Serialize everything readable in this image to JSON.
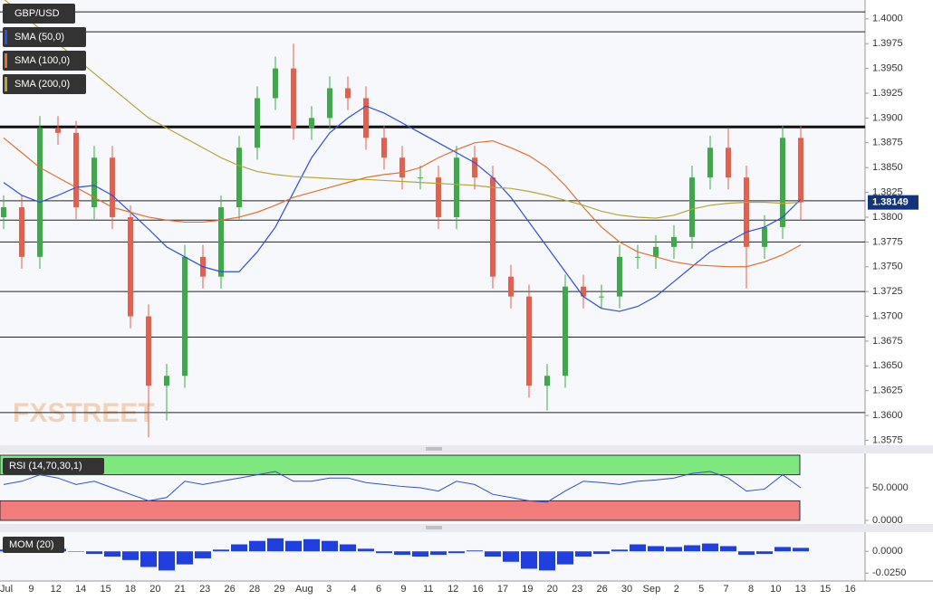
{
  "chart_data": [
    {
      "type": "candlestick",
      "title": "GBP/USD",
      "logo": "FXSTREET",
      "up_color": "#3ea84a",
      "down_color": "#e0614f",
      "open": [
        1.38,
        1.381,
        1.376,
        1.389,
        1.3885,
        1.381,
        1.386,
        1.38,
        1.37,
        1.363,
        1.364,
        1.376,
        1.374,
        1.381,
        1.387,
        1.392,
        1.395,
        1.389,
        1.39,
        1.393,
        1.392,
        1.388,
        1.386,
        1.384,
        1.384,
        1.38,
        1.386,
        1.384,
        1.374,
        1.372,
        1.363,
        1.364,
        1.373,
        1.372,
        1.372,
        1.376,
        1.376,
        1.377,
        1.378,
        1.384,
        1.387,
        1.384,
        1.377,
        1.379,
        1.388
      ],
      "high": [
        1.3822,
        1.3822,
        1.3902,
        1.3902,
        1.3897,
        1.3872,
        1.3872,
        1.3812,
        1.3712,
        1.3652,
        1.3772,
        1.3772,
        1.3822,
        1.3882,
        1.3932,
        1.3962,
        1.3975,
        1.3912,
        1.3942,
        1.3942,
        1.3932,
        1.3892,
        1.3872,
        1.3852,
        1.3852,
        1.3872,
        1.3872,
        1.3852,
        1.3752,
        1.3732,
        1.3652,
        1.3742,
        1.3742,
        1.3732,
        1.3772,
        1.3772,
        1.3782,
        1.3792,
        1.3852,
        1.3882,
        1.389,
        1.3852,
        1.3802,
        1.3892,
        1.3892
      ],
      "low": [
        1.3788,
        1.3748,
        1.3748,
        1.3873,
        1.3798,
        1.3798,
        1.3788,
        1.3688,
        1.3578,
        1.3595,
        1.3628,
        1.3728,
        1.3728,
        1.3798,
        1.3858,
        1.3908,
        1.3878,
        1.3878,
        1.3888,
        1.3908,
        1.3868,
        1.3848,
        1.3828,
        1.3828,
        1.3788,
        1.3788,
        1.3828,
        1.3728,
        1.3708,
        1.3618,
        1.3605,
        1.3628,
        1.3708,
        1.3708,
        1.3708,
        1.3748,
        1.3748,
        1.3758,
        1.3768,
        1.3828,
        1.3828,
        1.3728,
        1.3758,
        1.3778,
        1.3797
      ],
      "close": [
        1.381,
        1.376,
        1.389,
        1.3885,
        1.381,
        1.386,
        1.38,
        1.37,
        1.363,
        1.364,
        1.376,
        1.374,
        1.381,
        1.387,
        1.392,
        1.395,
        1.389,
        1.39,
        1.393,
        1.392,
        1.388,
        1.386,
        1.384,
        1.384,
        1.38,
        1.386,
        1.384,
        1.374,
        1.372,
        1.363,
        1.364,
        1.373,
        1.372,
        1.372,
        1.376,
        1.376,
        1.377,
        1.378,
        1.384,
        1.387,
        1.384,
        1.377,
        1.379,
        1.388,
        1.3815
      ],
      "series": [
        {
          "name": "SMA (50,0)",
          "color": "#2f4fd8",
          "values": [
            1.3835,
            1.3822,
            1.3815,
            1.3822,
            1.383,
            1.3832,
            1.3822,
            1.3805,
            1.3788,
            1.377,
            1.376,
            1.375,
            1.3745,
            1.3745,
            1.3765,
            1.379,
            1.3825,
            1.386,
            1.3885,
            1.39,
            1.3912,
            1.3905,
            1.3895,
            1.3885,
            1.3875,
            1.3865,
            1.3855,
            1.384,
            1.382,
            1.3795,
            1.377,
            1.3745,
            1.372,
            1.3708,
            1.3705,
            1.371,
            1.372,
            1.3735,
            1.375,
            1.3765,
            1.3775,
            1.3785,
            1.379,
            1.38,
            1.3818
          ]
        },
        {
          "name": "SMA (100,0)",
          "color": "#e07034",
          "values": [
            1.388,
            1.3865,
            1.385,
            1.384,
            1.383,
            1.382,
            1.381,
            1.3805,
            1.38,
            1.3797,
            1.3795,
            1.3795,
            1.3797,
            1.38,
            1.3805,
            1.3812,
            1.382,
            1.3825,
            1.383,
            1.3835,
            1.384,
            1.3843,
            1.3845,
            1.385,
            1.386,
            1.3868,
            1.3875,
            1.3877,
            1.387,
            1.3862,
            1.385,
            1.3832,
            1.381,
            1.379,
            1.3775,
            1.3765,
            1.376,
            1.3755,
            1.3752,
            1.3751,
            1.375,
            1.375,
            1.3755,
            1.3762,
            1.3772
          ]
        },
        {
          "name": "SMA (200,0)",
          "color": "#b5a638",
          "values": [
            1.402,
            1.4005,
            1.399,
            1.3975,
            1.396,
            1.3945,
            1.393,
            1.3915,
            1.39,
            1.389,
            1.388,
            1.387,
            1.386,
            1.3852,
            1.3846,
            1.3843,
            1.3841,
            1.384,
            1.3839,
            1.3838,
            1.3838,
            1.3837,
            1.3836,
            1.3835,
            1.3834,
            1.3833,
            1.3832,
            1.383,
            1.3829,
            1.3826,
            1.3822,
            1.3817,
            1.3812,
            1.3806,
            1.3802,
            1.38,
            1.3799,
            1.3802,
            1.3808,
            1.3812,
            1.3814,
            1.3815,
            1.3815,
            1.3814,
            1.3815
          ]
        }
      ],
      "ylim": [
        1.357,
        1.4019
      ],
      "yticks": [
        1.3575,
        {
          "value": 1.36,
          "label": "1.3600"
        },
        1.3625,
        {
          "value": 1.365,
          "label": "1.3650"
        },
        1.3675,
        {
          "value": 1.37,
          "label": "1.3700"
        },
        1.3725,
        {
          "value": 1.375,
          "label": "1.3750"
        },
        1.3775,
        {
          "value": 1.38,
          "label": "1.3800"
        },
        1.3825,
        {
          "value": 1.385,
          "label": "1.3850"
        },
        1.3875,
        {
          "value": 1.39,
          "label": "1.3900"
        },
        1.3925,
        {
          "value": 1.395,
          "label": "1.3950"
        },
        1.3975,
        {
          "value": 1.4,
          "label": "1.4000"
        }
      ],
      "levels": [
        1.4007,
        1.3987,
        1.38165,
        1.3797,
        1.3775,
        1.3725,
        1.3679,
        1.3603
      ],
      "key_level": 1.3891,
      "last_price": 1.38149
    },
    {
      "type": "line",
      "title": "RSI (14,70,30,1)",
      "color": "#3050c8",
      "values": [
        55,
        60,
        70,
        65,
        55,
        60,
        50,
        40,
        30,
        35,
        60,
        55,
        60,
        65,
        70,
        75,
        60,
        60,
        65,
        65,
        58,
        55,
        52,
        50,
        45,
        60,
        55,
        40,
        35,
        30,
        28,
        45,
        60,
        58,
        55,
        60,
        62,
        65,
        72,
        75,
        65,
        45,
        48,
        70,
        50
      ],
      "overbought": [
        70,
        100
      ],
      "overbought_color": "#7ee87e",
      "oversold": [
        0,
        30
      ],
      "oversold_color": "#f27c7c",
      "ylim": [
        0,
        100
      ],
      "yticks": [
        {
          "value": 50,
          "label": "50.0000"
        },
        {
          "value": 0,
          "label": "0.0000"
        }
      ]
    },
    {
      "type": "bar",
      "title": "MOM (20)",
      "color": "#1f3fe0",
      "values": [
        0.002,
        0.004,
        0.005,
        0.003,
        0,
        -0.003,
        -0.006,
        -0.01,
        -0.018,
        -0.022,
        -0.015,
        -0.008,
        0.002,
        0.008,
        0.012,
        0.015,
        0.012,
        0.014,
        0.012,
        0.008,
        0.003,
        -0.002,
        -0.004,
        -0.006,
        -0.004,
        -0.002,
        0.001,
        -0.006,
        -0.012,
        -0.02,
        -0.022,
        -0.015,
        -0.006,
        -0.003,
        0.002,
        0.008,
        0.006,
        0.005,
        0.007,
        0.009,
        0.006,
        -0.004,
        -0.003,
        0.005,
        0.004
      ],
      "ylim": [
        -0.032,
        0.02
      ],
      "yticks": [
        {
          "value": 0,
          "label": "0.0000"
        },
        {
          "value": -0.025,
          "label": "-0.0250"
        }
      ],
      "x_labels": [
        "Jul",
        "9",
        "12",
        "14",
        "15",
        "18",
        "20",
        "21",
        "23",
        "26",
        "28",
        "29",
        "Aug",
        "3",
        "4",
        "6",
        "9",
        "11",
        "12",
        "16",
        "17",
        "19",
        "20",
        "23",
        "26",
        "30",
        "Sep",
        "2",
        "5",
        "7",
        "8",
        "10",
        "13",
        "15",
        "16"
      ]
    }
  ]
}
